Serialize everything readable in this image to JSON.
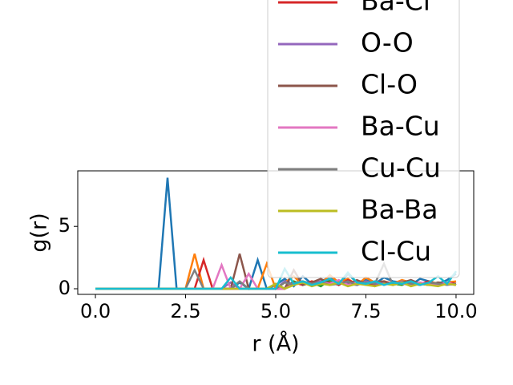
{
  "chart_data": {
    "type": "line",
    "x": [
      0,
      0.25,
      0.5,
      0.75,
      1,
      1.25,
      1.5,
      1.75,
      2,
      2.25,
      2.5,
      2.75,
      3,
      3.25,
      3.5,
      3.75,
      4,
      4.25,
      4.5,
      4.75,
      5,
      5.25,
      5.5,
      5.75,
      6,
      6.25,
      6.5,
      6.75,
      7,
      7.25,
      7.5,
      7.75,
      8,
      8.25,
      8.5,
      8.75,
      9,
      9.25,
      9.5,
      9.75,
      10
    ],
    "series": [
      {
        "color": "#1f77b4",
        "values": [
          0,
          0,
          0,
          0,
          0,
          0,
          0,
          0,
          8.9,
          0,
          0,
          0,
          0,
          0,
          0,
          0,
          0.5,
          0,
          2.3,
          0,
          0.3,
          0.8,
          0.2,
          1.0,
          0.4,
          0.6,
          0.9,
          0.3,
          1.2,
          0.5,
          0.7,
          0.4,
          0.9,
          0.6,
          0.5,
          0.3,
          0.8,
          0.6,
          0.4,
          0.7,
          1.2
        ]
      },
      {
        "color": "#ff7f0e",
        "values": [
          0,
          0,
          0,
          0,
          0,
          0,
          0,
          0,
          0,
          0,
          0,
          2.8,
          0,
          0,
          0,
          0,
          0,
          0,
          0,
          2.0,
          0,
          0.5,
          1.0,
          0.3,
          0.6,
          0.4,
          1.1,
          0.5,
          0.8,
          0.3,
          0.9,
          0.5,
          0.6,
          0.4,
          0.7,
          0.5,
          0.3,
          0.6,
          0.4,
          0.5,
          0.6
        ]
      },
      {
        "color": "#2ca02c",
        "values": [
          0,
          0,
          0,
          0,
          0,
          0,
          0,
          0,
          0,
          0,
          0,
          0,
          0,
          0,
          0,
          0,
          0,
          0,
          0,
          0,
          0.4,
          0,
          0.6,
          0.3,
          0.5,
          0.2,
          0.7,
          0.4,
          0.5,
          0.3,
          0.6,
          0.2,
          0.5,
          0.4,
          0.3,
          0.6,
          0.4,
          0.3,
          0.5,
          0.4,
          0.3
        ]
      },
      {
        "name": "Ba-Cl",
        "color": "#d62728",
        "values": [
          0,
          0,
          0,
          0,
          0,
          0,
          0,
          0,
          0,
          0,
          0,
          0,
          2.3,
          0,
          0,
          0,
          0,
          0,
          0,
          0,
          0,
          0,
          0.5,
          0.3,
          0.6,
          0.4,
          0.5,
          0.3,
          0.7,
          0.4,
          0.5,
          0.3,
          0.6,
          0.4,
          0.5,
          0.3,
          0.4,
          0.6,
          0.3,
          0.5,
          0.4
        ]
      },
      {
        "name": "O-O",
        "color": "#9467bd",
        "values": [
          0,
          0,
          0,
          0,
          0,
          0,
          0,
          0,
          0,
          0,
          0,
          0,
          0,
          0,
          0,
          0.5,
          0,
          0,
          0,
          0,
          0,
          0.6,
          0.3,
          0.5,
          0.4,
          0.6,
          0.3,
          0.5,
          0.4,
          0.3,
          0.6,
          0.4,
          0.5,
          0.3,
          0.6,
          0.4,
          0.5,
          0.3,
          0.4,
          0.5,
          0.3
        ]
      },
      {
        "name": "Cl-O",
        "color": "#8c564b",
        "values": [
          0,
          0,
          0,
          0,
          0,
          0,
          0,
          0,
          0,
          0,
          0,
          0,
          0,
          0,
          0,
          0,
          2.8,
          0,
          0,
          0,
          0,
          0,
          1.5,
          0.3,
          0.5,
          0.8,
          0.4,
          0.6,
          0.3,
          0.7,
          0.4,
          0.5,
          0.6,
          0.3,
          0.5,
          0.7,
          0.4,
          0.3,
          0.5,
          0.4,
          0.3
        ]
      },
      {
        "name": "Ba-Cu",
        "color": "#e377c2",
        "values": [
          0,
          0,
          0,
          0,
          0,
          0,
          0,
          0,
          0,
          0,
          0,
          0,
          0,
          0,
          1.9,
          0,
          0,
          1.2,
          0,
          0,
          0,
          0,
          0.4,
          0.6,
          0.3,
          0.5,
          0.4,
          0.7,
          0.3,
          0.5,
          0.4,
          0.6,
          0.3,
          0.5,
          0.4,
          0.3,
          0.5,
          0.4,
          0.3,
          0.5,
          0.3
        ]
      },
      {
        "name": "Cu-Cu",
        "color": "#7f7f7f",
        "values": [
          0,
          0,
          0,
          0,
          0,
          0,
          0,
          0,
          0,
          0,
          0,
          1.5,
          0,
          0,
          0,
          0,
          0.6,
          0,
          0,
          0,
          0,
          0.5,
          0.3,
          0.6,
          0.4,
          0.5,
          0.3,
          0.4,
          0.6,
          0.3,
          0.5,
          0.4,
          2.0,
          0.3,
          0.5,
          0.4,
          0.3,
          0.5,
          0.4,
          0.3,
          0.4
        ]
      },
      {
        "name": "Ba-Ba",
        "color": "#bcbd22",
        "values": [
          0,
          0,
          0,
          0,
          0,
          0,
          0,
          0,
          0,
          0,
          0,
          0,
          0,
          0,
          0,
          0,
          0,
          0,
          0,
          0,
          0.4,
          0,
          0.3,
          0.5,
          0.2,
          0.4,
          0.3,
          0.5,
          0.2,
          0.4,
          0.3,
          0.2,
          0.4,
          0.3,
          0.5,
          0.2,
          0.4,
          0.3,
          0.2,
          0.4,
          0.3
        ]
      },
      {
        "name": "Cl-Cu",
        "color": "#17becf",
        "values": [
          0,
          0,
          0,
          0,
          0,
          0,
          0,
          0,
          0,
          0,
          0,
          0,
          0,
          0,
          0,
          0.9,
          0,
          0,
          0,
          0,
          0,
          1.6,
          0.4,
          0.6,
          0.3,
          0.5,
          0.8,
          0.4,
          1.3,
          0.5,
          0.4,
          0.6,
          0.3,
          0.5,
          0.4,
          0.6,
          0.3,
          0.5,
          1.0,
          0.4,
          1.4
        ]
      }
    ],
    "xlabel": "r (Å)",
    "ylabel": "g(r)",
    "xlim": [
      -0.49,
      10.49
    ],
    "ylim": [
      -0.45,
      9.45
    ],
    "xticks": [
      {
        "value": 0,
        "label": "0.0"
      },
      {
        "value": 2.5,
        "label": "2.5"
      },
      {
        "value": 5,
        "label": "5.0"
      },
      {
        "value": 7.5,
        "label": "7.5"
      },
      {
        "value": 10,
        "label": "10.0"
      }
    ],
    "yticks": [
      0,
      5
    ],
    "legend": "upper right"
  }
}
